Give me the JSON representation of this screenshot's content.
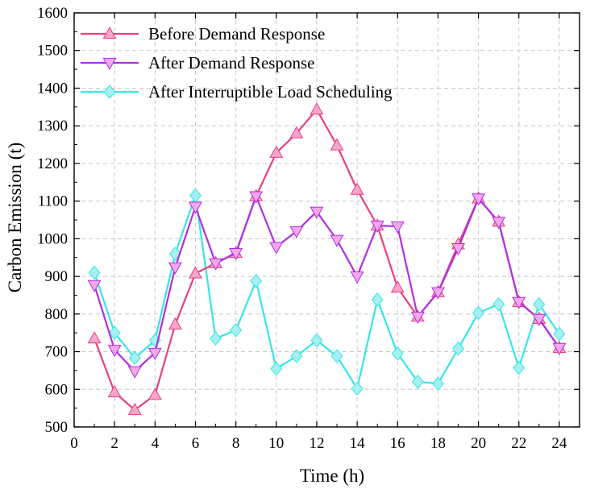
{
  "chart_data": {
    "type": "line",
    "xlabel": "Time (h)",
    "ylabel": "Carbon Emission (t)",
    "xlim": [
      0,
      25
    ],
    "ylim": [
      500,
      1600
    ],
    "xticks": [
      0,
      2,
      4,
      6,
      8,
      10,
      12,
      14,
      16,
      18,
      20,
      22,
      24
    ],
    "yticks": [
      500,
      600,
      700,
      800,
      900,
      1000,
      1100,
      1200,
      1300,
      1400,
      1500,
      1600
    ],
    "grid": true,
    "legend_position": "top-left",
    "x": [
      1,
      2,
      3,
      4,
      5,
      6,
      7,
      8,
      9,
      10,
      11,
      12,
      13,
      14,
      15,
      16,
      17,
      18,
      19,
      20,
      21,
      22,
      23,
      24
    ],
    "series": [
      {
        "name": "Before Demand Response",
        "color": "#e8407f",
        "marker_fill": "#f6a6cb",
        "marker": "triangle-up",
        "values": [
          735,
          592,
          545,
          585,
          772,
          908,
          935,
          962,
          1113,
          1228,
          1280,
          1343,
          1248,
          1130,
          1035,
          870,
          793,
          858,
          985,
          1107,
          1045,
          832,
          787,
          710
        ]
      },
      {
        "name": "After Demand Response",
        "color": "#b12ee3",
        "marker_fill": "#f0a8e8",
        "marker": "triangle-down",
        "values": [
          877,
          705,
          648,
          697,
          924,
          1085,
          935,
          962,
          1113,
          978,
          1020,
          1072,
          997,
          900,
          1035,
          1033,
          793,
          858,
          975,
          1107,
          1045,
          832,
          787,
          710
        ]
      },
      {
        "name": "After Interruptible Load Scheduling",
        "color": "#36e6e6",
        "marker_fill": "#a6f0f0",
        "marker": "diamond",
        "values": [
          910,
          750,
          683,
          730,
          960,
          1115,
          735,
          757,
          888,
          655,
          688,
          730,
          688,
          602,
          838,
          695,
          620,
          615,
          708,
          803,
          826,
          657,
          826,
          747
        ]
      }
    ]
  }
}
